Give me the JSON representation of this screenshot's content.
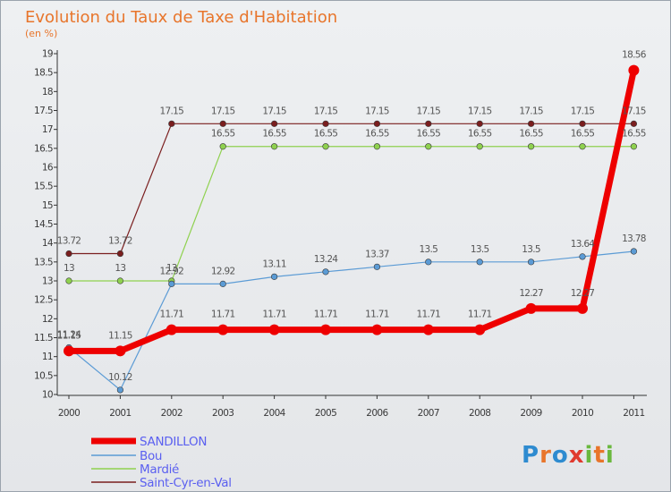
{
  "chart_data": {
    "type": "line",
    "title": "Evolution du Taux de Taxe d'Habitation",
    "subtitle": "(en %)",
    "xlabel": "",
    "ylabel": "",
    "x": [
      "2000",
      "2001",
      "2002",
      "2003",
      "2004",
      "2005",
      "2006",
      "2007",
      "2008",
      "2009",
      "2010",
      "2011"
    ],
    "ylim": [
      10,
      19
    ],
    "yticks": [
      "10",
      "10.5",
      "11",
      "11.5",
      "12",
      "12.5",
      "13",
      "13.5",
      "14",
      "14.5",
      "15",
      "15.5",
      "16",
      "16.5",
      "17",
      "17.5",
      "18",
      "18.5",
      "19"
    ],
    "series": [
      {
        "name": "Saint-Cyr-en-Val",
        "color": "#7a1e1e",
        "values": [
          13.72,
          13.72,
          17.15,
          17.15,
          17.15,
          17.15,
          17.15,
          17.15,
          17.15,
          17.15,
          17.15,
          17.15
        ],
        "labels": [
          "13.72",
          "13.72",
          "17.15",
          "17.15",
          "17.15",
          "17.15",
          "17.15",
          "17.15",
          "17.15",
          "17.15",
          "17.15",
          "17.15"
        ]
      },
      {
        "name": "Mardié",
        "color": "#8fd14f",
        "values": [
          13,
          13,
          13,
          16.55,
          16.55,
          16.55,
          16.55,
          16.55,
          16.55,
          16.55,
          16.55,
          16.55
        ],
        "labels": [
          "13",
          "13",
          "13",
          "16.55",
          "16.55",
          "16.55",
          "16.55",
          "16.55",
          "16.55",
          "16.55",
          "16.55",
          "16.55"
        ]
      },
      {
        "name": "Bou",
        "color": "#5b9bd5",
        "values": [
          11.24,
          10.12,
          12.92,
          12.92,
          13.11,
          13.24,
          13.37,
          13.5,
          13.5,
          13.5,
          13.64,
          13.78
        ],
        "labels": [
          "11.24",
          "10.12",
          "12.92",
          "12.92",
          "13.11",
          "13.24",
          "13.37",
          "13.5",
          "13.5",
          "13.5",
          "13.64",
          "13.78"
        ]
      },
      {
        "name": "SANDILLON",
        "color": "#ee0000",
        "values": [
          11.15,
          11.15,
          11.71,
          11.71,
          11.71,
          11.71,
          11.71,
          11.71,
          11.71,
          12.27,
          12.27,
          18.56
        ],
        "labels": [
          "11.15",
          "11.15",
          "11.71",
          "11.71",
          "11.71",
          "11.71",
          "11.71",
          "11.71",
          "11.71",
          "12.27",
          "12.27",
          "18.56"
        ]
      }
    ],
    "legend": [
      "SANDILLON",
      "Bou",
      "Mardié",
      "Saint-Cyr-en-Val"
    ],
    "legend_position": "bottom-left",
    "grid": false
  },
  "brand": {
    "text": "Proxiti",
    "letters": [
      "P",
      "r",
      "o",
      "x",
      "i",
      "t",
      "i"
    ],
    "colors": [
      "#2e8bd0",
      "#e8752b",
      "#2e8bd0",
      "#e03a2f",
      "#6ab83e",
      "#e8752b",
      "#6ab83e"
    ]
  }
}
